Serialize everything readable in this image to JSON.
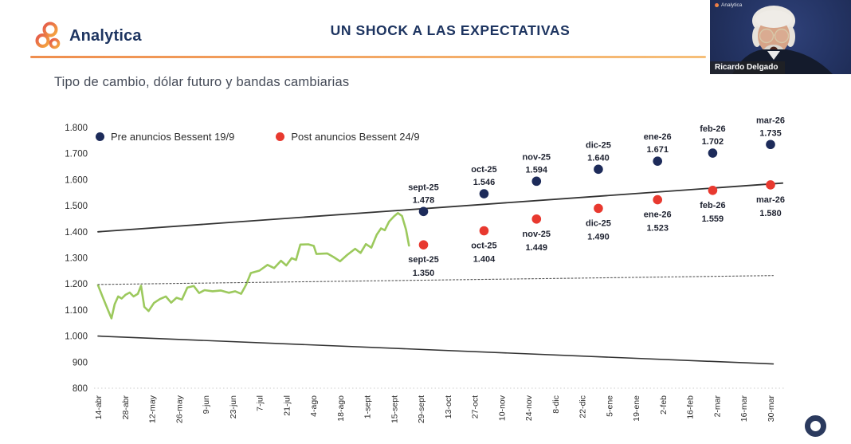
{
  "header": {
    "logo_text": "Analytica",
    "title": "UN SHOCK A LAS EXPECTATIVAS"
  },
  "subtitle": "Tipo de cambio, dólar futuro y bandas cambiarias",
  "webcam": {
    "logo_text": "Analytica",
    "name": "Ricardo Delgado"
  },
  "legend": [
    {
      "label": "Pre anuncios Bessent 19/9",
      "color": "#1d2b5a"
    },
    {
      "label": "Post anuncios Bessent 24/9",
      "color": "#e8392f"
    }
  ],
  "colors": {
    "accent_orange": "#f2a052",
    "title_navy": "#1d3460",
    "spot_green": "#9cc95d",
    "band_dark": "#333333",
    "label_dark": "#1e2230",
    "axis_text": "#2b2b2b"
  },
  "chart_data": {
    "type": "line",
    "title": "Tipo de cambio, dólar futuro y bandas cambiarias",
    "ylim": [
      800,
      1800
    ],
    "grid": false,
    "legend_position": "top-left-inside",
    "y_ticks": [
      {
        "v": 1800,
        "label": "1.800"
      },
      {
        "v": 1700,
        "label": "1.700"
      },
      {
        "v": 1600,
        "label": "1.600"
      },
      {
        "v": 1500,
        "label": "1.500"
      },
      {
        "v": 1400,
        "label": "1.400"
      },
      {
        "v": 1300,
        "label": "1.300"
      },
      {
        "v": 1200,
        "label": "1.200"
      },
      {
        "v": 1100,
        "label": "1.100"
      },
      {
        "v": 1000,
        "label": "1.000"
      },
      {
        "v": 900,
        "label": "900"
      },
      {
        "v": 800,
        "label": "800"
      }
    ],
    "x_tick_labels": [
      "14-abr",
      "28-abr",
      "12-may",
      "26-may",
      "9-jun",
      "23-jun",
      "7-jul",
      "21-jul",
      "4-ago",
      "18-ago",
      "1-sept",
      "15-sept",
      "29-sept",
      "13-oct",
      "27-oct",
      "10-nov",
      "24-nov",
      "8-dic",
      "22-dic",
      "5-ene",
      "19-ene",
      "2-feb",
      "16-feb",
      "2-mar",
      "16-mar",
      "30-mar"
    ],
    "series": [
      {
        "name": "tipo-de-cambio-spot",
        "style": "solid",
        "color": "#9cc95d",
        "width": 2.6,
        "points": [
          [
            0.0,
            1195
          ],
          [
            0.18,
            1148
          ],
          [
            0.38,
            1098
          ],
          [
            0.5,
            1068
          ],
          [
            0.62,
            1122
          ],
          [
            0.75,
            1152
          ],
          [
            0.88,
            1144
          ],
          [
            1.02,
            1158
          ],
          [
            1.18,
            1167
          ],
          [
            1.32,
            1152
          ],
          [
            1.48,
            1162
          ],
          [
            1.6,
            1193
          ],
          [
            1.72,
            1112
          ],
          [
            1.88,
            1096
          ],
          [
            2.08,
            1127
          ],
          [
            2.3,
            1142
          ],
          [
            2.52,
            1152
          ],
          [
            2.72,
            1128
          ],
          [
            2.92,
            1147
          ],
          [
            3.12,
            1140
          ],
          [
            3.32,
            1186
          ],
          [
            3.56,
            1192
          ],
          [
            3.76,
            1165
          ],
          [
            3.96,
            1176
          ],
          [
            4.26,
            1172
          ],
          [
            4.56,
            1175
          ],
          [
            4.86,
            1166
          ],
          [
            5.1,
            1172
          ],
          [
            5.32,
            1162
          ],
          [
            5.5,
            1196
          ],
          [
            5.68,
            1242
          ],
          [
            6.0,
            1251
          ],
          [
            6.3,
            1273
          ],
          [
            6.55,
            1261
          ],
          [
            6.8,
            1289
          ],
          [
            7.0,
            1271
          ],
          [
            7.2,
            1299
          ],
          [
            7.36,
            1292
          ],
          [
            7.52,
            1351
          ],
          [
            7.82,
            1352
          ],
          [
            8.02,
            1346
          ],
          [
            8.12,
            1315
          ],
          [
            8.52,
            1317
          ],
          [
            8.76,
            1303
          ],
          [
            9.0,
            1287
          ],
          [
            9.26,
            1311
          ],
          [
            9.56,
            1335
          ],
          [
            9.76,
            1319
          ],
          [
            9.96,
            1353
          ],
          [
            10.16,
            1339
          ],
          [
            10.36,
            1389
          ],
          [
            10.52,
            1413
          ],
          [
            10.66,
            1406
          ],
          [
            10.82,
            1439
          ],
          [
            11.0,
            1459
          ],
          [
            11.15,
            1472
          ],
          [
            11.3,
            1461
          ],
          [
            11.45,
            1408
          ],
          [
            11.56,
            1347
          ]
        ]
      },
      {
        "name": "banda-superior",
        "style": "solid",
        "color": "#333333",
        "width": 1.8,
        "points": [
          [
            0,
            1400
          ],
          [
            25.45,
            1587
          ]
        ]
      },
      {
        "name": "banda-inferior",
        "style": "solid",
        "color": "#333333",
        "width": 1.6,
        "points": [
          [
            0,
            1000
          ],
          [
            25.1,
            893
          ]
        ]
      },
      {
        "name": "linea-punteada-referencia",
        "style": "dotted",
        "color": "#555555",
        "width": 1.1,
        "points": [
          [
            0,
            1198
          ],
          [
            25.1,
            1232
          ]
        ]
      },
      {
        "name": "Pre anuncios Bessent 19/9",
        "style": "scatter",
        "color": "#1d2b5a",
        "label_position": "above",
        "points": [
          {
            "x": 12.1,
            "v": 1478,
            "date": "sept-25",
            "value_label": "1.478"
          },
          {
            "x": 14.35,
            "v": 1546,
            "date": "oct-25",
            "value_label": "1.546"
          },
          {
            "x": 16.3,
            "v": 1594,
            "date": "nov-25",
            "value_label": "1.594"
          },
          {
            "x": 18.6,
            "v": 1640,
            "date": "dic-25",
            "value_label": "1.640"
          },
          {
            "x": 20.8,
            "v": 1671,
            "date": "ene-26",
            "value_label": "1.671"
          },
          {
            "x": 22.85,
            "v": 1702,
            "date": "feb-26",
            "value_label": "1.702"
          },
          {
            "x": 25.0,
            "v": 1735,
            "date": "mar-26",
            "value_label": "1.735"
          }
        ]
      },
      {
        "name": "Post anuncios Bessent 24/9",
        "style": "scatter",
        "color": "#e8392f",
        "label_position": "below",
        "points": [
          {
            "x": 12.1,
            "v": 1350,
            "date": "sept-25",
            "value_label": "1.350"
          },
          {
            "x": 14.35,
            "v": 1404,
            "date": "oct-25",
            "value_label": "1.404"
          },
          {
            "x": 16.3,
            "v": 1449,
            "date": "nov-25",
            "value_label": "1.449"
          },
          {
            "x": 18.6,
            "v": 1490,
            "date": "dic-25",
            "value_label": "1.490"
          },
          {
            "x": 20.8,
            "v": 1523,
            "date": "ene-26",
            "value_label": "1.523"
          },
          {
            "x": 22.85,
            "v": 1559,
            "date": "feb-26",
            "value_label": "1.559"
          },
          {
            "x": 25.0,
            "v": 1580,
            "date": "mar-26",
            "value_label": "1.580"
          }
        ]
      }
    ]
  }
}
